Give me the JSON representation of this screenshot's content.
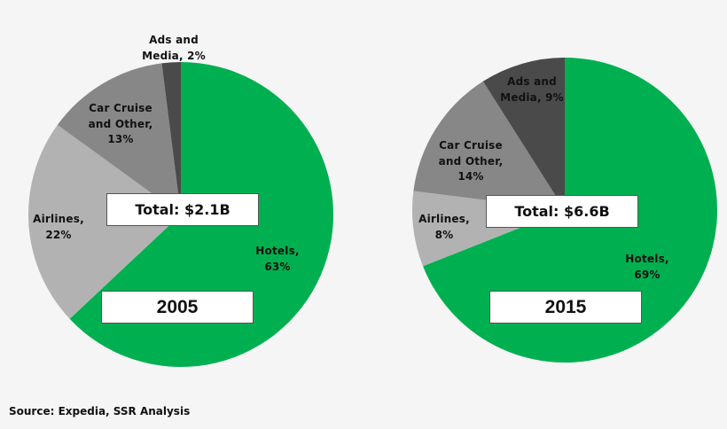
{
  "chart_data": [
    {
      "type": "pie",
      "year": "2005",
      "total_label": "Total: $2.1B",
      "slices": [
        {
          "label": "Hotels",
          "value": 63,
          "text": [
            "Hotels,",
            "63%"
          ],
          "color": "#00b050"
        },
        {
          "label": "Airlines",
          "value": 22,
          "text": [
            "Airlines,",
            "22%"
          ],
          "color": "#b2b2b2"
        },
        {
          "label": "Car Cruise and Other",
          "value": 13,
          "text": [
            "Car Cruise",
            "and Other,",
            "13%"
          ],
          "color": "#878787"
        },
        {
          "label": "Ads and Media",
          "value": 2,
          "text": [
            "Ads and",
            "Media, 2%"
          ],
          "color": "#4a4a4a"
        }
      ]
    },
    {
      "type": "pie",
      "year": "2015",
      "total_label": "Total: $6.6B",
      "slices": [
        {
          "label": "Hotels",
          "value": 69,
          "text": [
            "Hotels,",
            "69%"
          ],
          "color": "#00b050"
        },
        {
          "label": "Airlines",
          "value": 8,
          "text": [
            "Airlines,",
            "8%"
          ],
          "color": "#b2b2b2"
        },
        {
          "label": "Car Cruise and Other",
          "value": 14,
          "text": [
            "Car Cruise",
            "and Other,",
            "14%"
          ],
          "color": "#878787"
        },
        {
          "label": "Ads and Media",
          "value": 9,
          "text": [
            "Ads and",
            "Media, 9%"
          ],
          "color": "#4a4a4a"
        }
      ]
    }
  ],
  "source": "Source:  Expedia, SSR Analysis"
}
